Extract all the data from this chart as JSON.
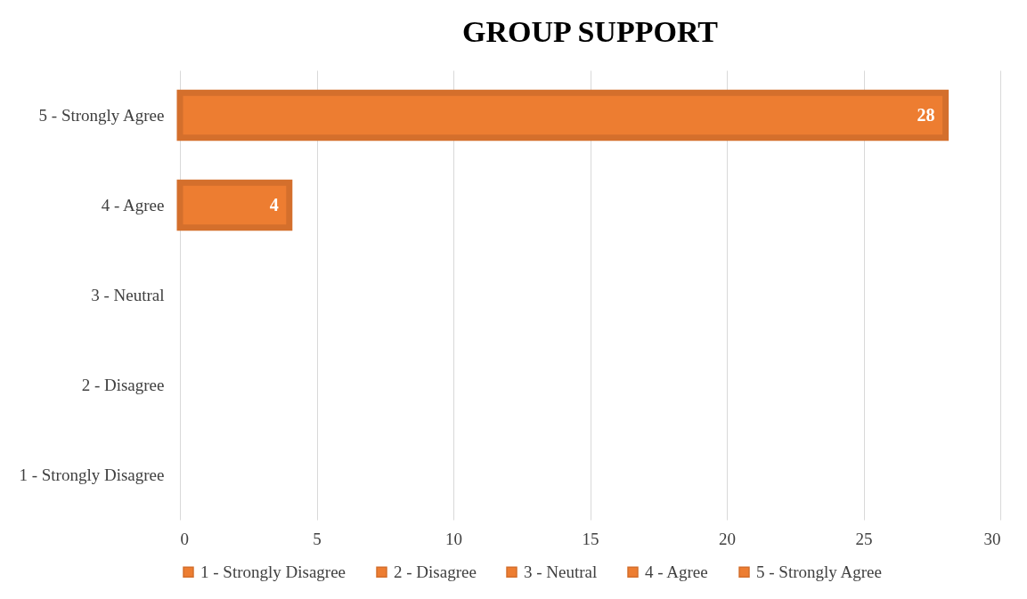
{
  "chart_data": {
    "type": "bar",
    "orientation": "horizontal",
    "title": "GROUP SUPPORT",
    "categories": [
      "5 - Strongly Agree",
      "4 - Agree",
      "3 - Neutral",
      "2 - Disagree",
      "1 - Strongly Disagree"
    ],
    "series": [
      {
        "name": "1 - Strongly Disagree",
        "color": "#ed7d31",
        "values": [
          null,
          null,
          null,
          null,
          null
        ]
      },
      {
        "name": "2 - Disagree",
        "color": "#ed7d31",
        "values": [
          null,
          null,
          null,
          null,
          null
        ]
      },
      {
        "name": "3 - Neutral",
        "color": "#ed7d31",
        "values": [
          null,
          null,
          null,
          null,
          null
        ]
      },
      {
        "name": "4 - Agree",
        "color": "#ed7d31",
        "values": [
          null,
          4,
          null,
          null,
          null
        ]
      },
      {
        "name": "5 - Strongly Agree",
        "color": "#ed7d31",
        "values": [
          28,
          null,
          null,
          null,
          null
        ]
      }
    ],
    "data_labels": true,
    "xlim": [
      0,
      30
    ],
    "xticks": [
      0,
      5,
      10,
      15,
      20,
      25,
      30
    ],
    "grid": "x",
    "legend": "bottom"
  }
}
